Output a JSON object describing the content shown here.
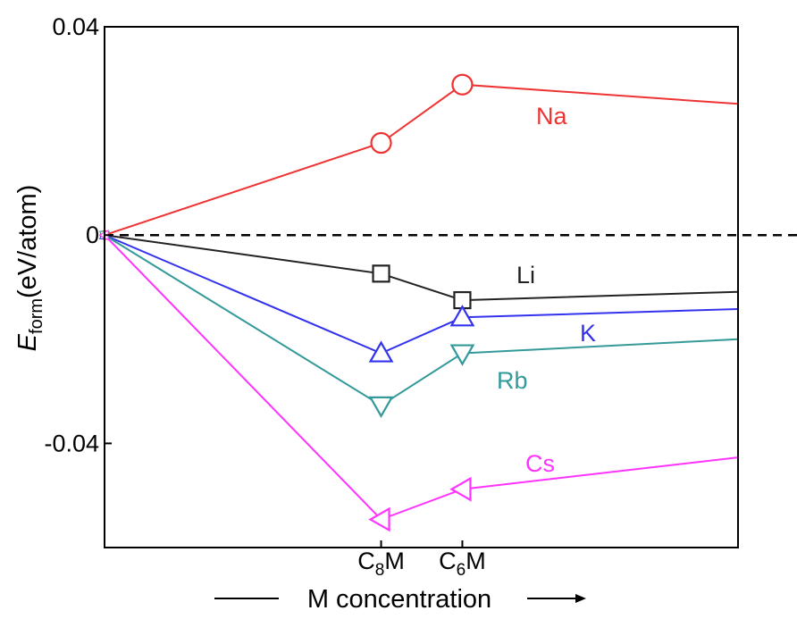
{
  "chart_data": {
    "type": "line",
    "xlabel": "M concentration",
    "ylabel": {
      "main": "E",
      "sub": "form",
      "unit": "(eV/atom)"
    },
    "ylim": [
      -0.06,
      0.04
    ],
    "yticks": [
      {
        "value": 0.04,
        "label": "0.04"
      },
      {
        "value": 0,
        "label": "0"
      },
      {
        "value": -0.04,
        "label": "-0.04"
      }
    ],
    "xlim": [
      0,
      1
    ],
    "x_categories": [
      {
        "x": 0.4366,
        "main": "C",
        "sub": "8",
        "tail": "M"
      },
      {
        "x": 0.5648,
        "main": "C",
        "sub": "6",
        "tail": "M"
      }
    ],
    "reference_line": {
      "y": 0,
      "style": "dashed"
    },
    "series": [
      {
        "name": "Na",
        "color": "#ee3333",
        "marker": "circle",
        "points": [
          [
            0,
            0
          ],
          [
            0.4366,
            0.0177
          ],
          [
            0.5648,
            0.0289
          ],
          [
            1,
            0.0252
          ]
        ],
        "marker_indices": [
          1,
          2
        ]
      },
      {
        "name": "Li",
        "color": "#222222",
        "marker": "square",
        "points": [
          [
            0,
            0
          ],
          [
            0.4366,
            -0.0074
          ],
          [
            0.5648,
            -0.0125
          ],
          [
            1,
            -0.0109
          ]
        ],
        "marker_indices": [
          1,
          2
        ]
      },
      {
        "name": "K",
        "color": "#3333ee",
        "marker": "triangle-up",
        "points": [
          [
            0,
            0
          ],
          [
            0.4366,
            -0.0227
          ],
          [
            0.5648,
            -0.0158
          ],
          [
            1,
            -0.0142
          ]
        ],
        "marker_indices": [
          1,
          2
        ]
      },
      {
        "name": "Rb",
        "color": "#339999",
        "marker": "triangle-down",
        "points": [
          [
            0,
            0
          ],
          [
            0.4366,
            -0.0327
          ],
          [
            0.5648,
            -0.0227
          ],
          [
            1,
            -0.02
          ]
        ],
        "marker_indices": [
          1,
          2
        ]
      },
      {
        "name": "Cs",
        "color": "#ff33ff",
        "marker": "triangle-left",
        "points": [
          [
            0,
            0
          ],
          [
            0.4366,
            -0.0546
          ],
          [
            0.5648,
            -0.0488
          ],
          [
            1,
            -0.0427
          ]
        ],
        "marker_indices": [
          1,
          2
        ]
      }
    ]
  }
}
